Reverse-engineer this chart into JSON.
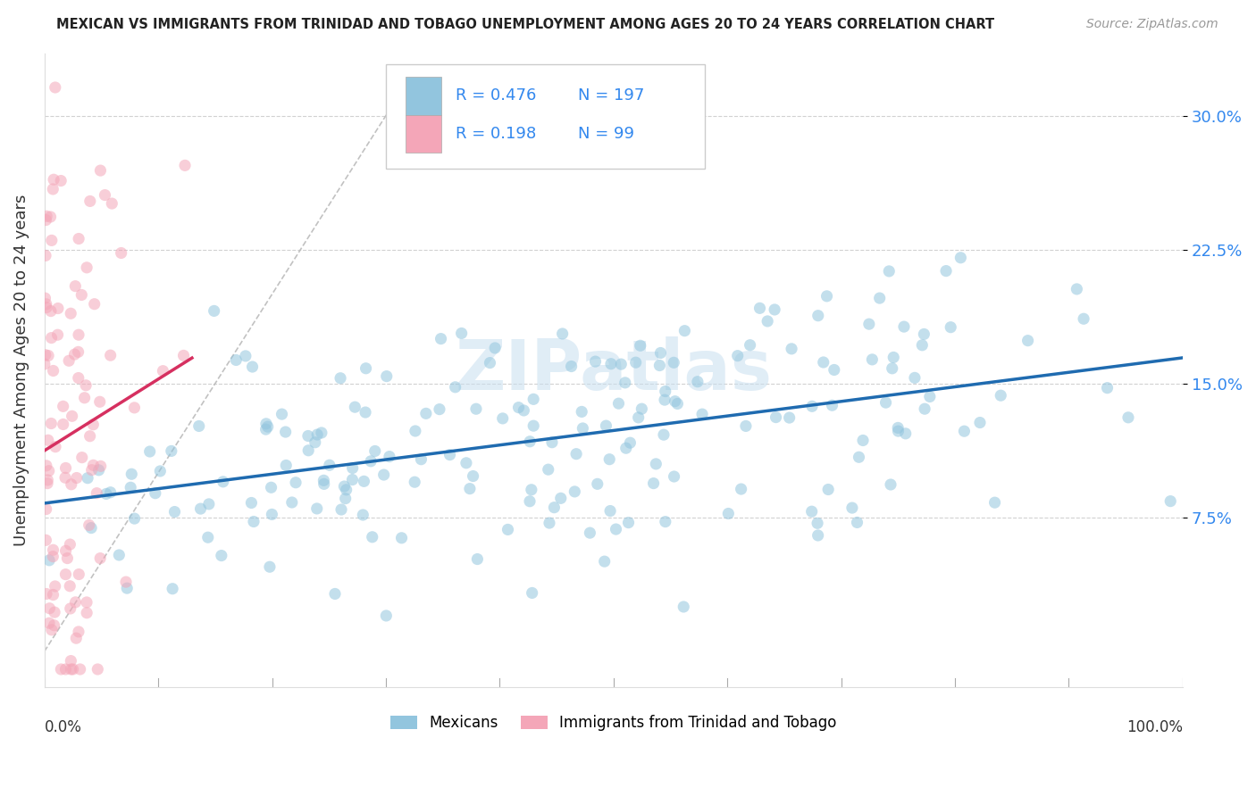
{
  "title": "MEXICAN VS IMMIGRANTS FROM TRINIDAD AND TOBAGO UNEMPLOYMENT AMONG AGES 20 TO 24 YEARS CORRELATION CHART",
  "source": "Source: ZipAtlas.com",
  "ylabel": "Unemployment Among Ages 20 to 24 years",
  "yticks_labels": [
    "7.5%",
    "15.0%",
    "22.5%",
    "30.0%"
  ],
  "ytick_vals": [
    0.075,
    0.15,
    0.225,
    0.3
  ],
  "xlim": [
    0.0,
    1.0
  ],
  "ylim": [
    -0.02,
    0.335
  ],
  "blue_R": 0.476,
  "blue_N": 197,
  "pink_R": 0.198,
  "pink_N": 99,
  "blue_color": "#92c5de",
  "pink_color": "#f4a6b8",
  "blue_line_color": "#1f6bb0",
  "pink_line_color": "#d63060",
  "diagonal_color": "#bbbbbb",
  "legend_label_blue": "Mexicans",
  "legend_label_pink": "Immigrants from Trinidad and Tobago",
  "watermark": "ZIPatlas",
  "title_color": "#222222",
  "stat_color": "#3388ee",
  "background_color": "#ffffff",
  "grid_color": "#cccccc"
}
